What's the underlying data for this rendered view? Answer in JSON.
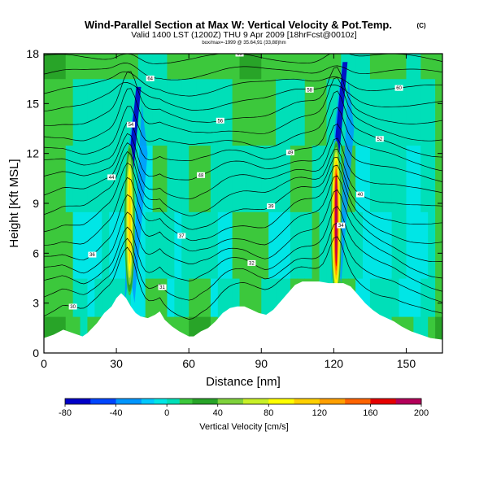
{
  "chart_data": {
    "type": "heatmap",
    "title": "Wind-Parallel Section at Max W: Vertical Velocity & Pot.Temp.",
    "title_mark": "(C)",
    "subtitle": "Valid 1400 LST (1200Z) THU 9 Apr 2009 [18hrFcst@0010z]",
    "subtitle2": "box/max=-1999 @ 35.64,91 (33,88)hm",
    "xlabel": "Distance [nm]",
    "ylabel": "Height [Kft MSL]",
    "xlim": [
      0,
      165
    ],
    "ylim": [
      0,
      18
    ],
    "x_ticks": [
      0,
      30,
      60,
      90,
      120,
      150
    ],
    "y_ticks": [
      0,
      3,
      6,
      9,
      12,
      15,
      18
    ],
    "grid": false,
    "terrain": [
      [
        0,
        0.9
      ],
      [
        4,
        1.1
      ],
      [
        8,
        1.4
      ],
      [
        12,
        1.2
      ],
      [
        16,
        1.0
      ],
      [
        18,
        1.2
      ],
      [
        22,
        1.8
      ],
      [
        25,
        2.4
      ],
      [
        28,
        2.8
      ],
      [
        30,
        3.3
      ],
      [
        32,
        3.6
      ],
      [
        34,
        3.3
      ],
      [
        36,
        2.8
      ],
      [
        38,
        2.4
      ],
      [
        40,
        2.2
      ],
      [
        43,
        2.1
      ],
      [
        46,
        2.3
      ],
      [
        48,
        2.5
      ],
      [
        50,
        2.0
      ],
      [
        53,
        1.6
      ],
      [
        56,
        1.3
      ],
      [
        60,
        1.0
      ],
      [
        62,
        1.0
      ],
      [
        65,
        1.3
      ],
      [
        68,
        1.5
      ],
      [
        71,
        1.9
      ],
      [
        74,
        2.4
      ],
      [
        77,
        2.7
      ],
      [
        80,
        2.8
      ],
      [
        83,
        2.8
      ],
      [
        86,
        2.6
      ],
      [
        89,
        2.4
      ],
      [
        92,
        2.3
      ],
      [
        95,
        2.6
      ],
      [
        98,
        3.1
      ],
      [
        101,
        3.6
      ],
      [
        104,
        4.1
      ],
      [
        107,
        4.3
      ],
      [
        110,
        4.3
      ],
      [
        114,
        4.3
      ],
      [
        118,
        4.2
      ],
      [
        120,
        4.2
      ],
      [
        122,
        4.2
      ],
      [
        124,
        4.2
      ],
      [
        127,
        4.0
      ],
      [
        130,
        3.5
      ],
      [
        133,
        3.0
      ],
      [
        136,
        2.6
      ],
      [
        139,
        2.3
      ],
      [
        142,
        2.1
      ],
      [
        145,
        1.9
      ],
      [
        148,
        1.6
      ],
      [
        152,
        1.3
      ],
      [
        156,
        1.1
      ],
      [
        160,
        0.9
      ],
      [
        165,
        0.8
      ]
    ],
    "plumes": [
      {
        "x": 35.5,
        "bottom": 3.0,
        "top": 12.5,
        "peak_w": 110,
        "updraft_z": 8.0
      },
      {
        "x": 121.0,
        "bottom": 4.2,
        "top": 14.0,
        "peak_w": 190,
        "updraft_z": 8.0
      }
    ],
    "isentrope_labels": [
      "30",
      "31",
      "32",
      "34",
      "36",
      "37",
      "39",
      "40",
      "44",
      "48",
      "49",
      "52",
      "54",
      "56",
      "58",
      "60",
      "64",
      "65"
    ],
    "colorbar": {
      "label": "Vertical Velocity [cm/s]",
      "min": -80,
      "max": 200,
      "tick_labels": [
        "-80",
        "-40",
        "0",
        "40",
        "80",
        "120",
        "160",
        "200"
      ],
      "tick_values": [
        -80,
        -40,
        0,
        40,
        80,
        120,
        160,
        200
      ],
      "levels": [
        -80,
        -60,
        -40,
        -20,
        -10,
        0,
        10,
        20,
        40,
        60,
        80,
        100,
        120,
        140,
        160,
        180,
        200
      ],
      "colors": [
        "#0000c8",
        "#0046ff",
        "#0096ff",
        "#00c8ff",
        "#00e6e6",
        "#00dfb8",
        "#3cc83c",
        "#28a428",
        "#7fd23c",
        "#c8f028",
        "#ffff00",
        "#ffd000",
        "#ffa000",
        "#ff6400",
        "#e60000",
        "#b4005a"
      ]
    }
  }
}
